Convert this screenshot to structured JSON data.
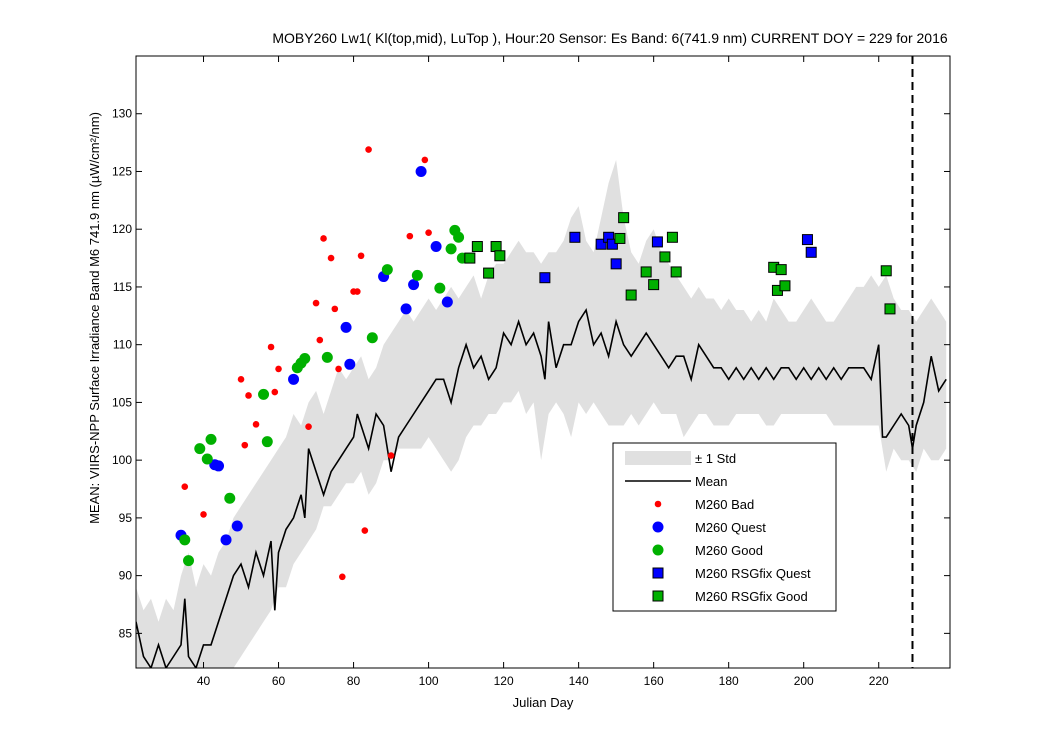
{
  "chart_data": {
    "type": "line",
    "title": "MOBY260   Lw1( Kl(top,mid), LuTop ),   Hour:20 Sensor: Es Band: 6(741.9 nm)   CURRENT DOY = 229 for 2016",
    "xlabel": "Julian Day",
    "ylabel": "MEAN: VIIRS-NPP Surface Irradiance Band M6 741.9 nm (µW/cm²/nm)",
    "xlim": [
      22,
      239
    ],
    "ylim": [
      82,
      135
    ],
    "xticks": [
      "40",
      "60",
      "80",
      "100",
      "120",
      "140",
      "160",
      "180",
      "200",
      "220"
    ],
    "yticks": [
      "85",
      "90",
      "95",
      "100",
      "105",
      "110",
      "115",
      "120",
      "125",
      "130"
    ],
    "grid": false,
    "legend_position": "lower-right",
    "current_doy": 229,
    "legend": [
      "± 1 Std",
      "Mean",
      "M260 Bad",
      "M260 Quest",
      "M260 Good",
      "M260 RSGfix Quest",
      "M260 RSGfix Good"
    ],
    "colors": {
      "std_band": "#e0e0e0",
      "mean": "#000000",
      "bad": "#ff0000",
      "quest": "#0000ff",
      "good": "#00b000",
      "marker_edge": "#000000"
    },
    "std_band": {
      "x": [
        22,
        24,
        26,
        28,
        30,
        32,
        34,
        36,
        38,
        40,
        42,
        44,
        46,
        48,
        50,
        52,
        54,
        56,
        58,
        60,
        62,
        64,
        66,
        68,
        70,
        72,
        74,
        76,
        78,
        80,
        82,
        84,
        86,
        88,
        90,
        92,
        94,
        96,
        98,
        100,
        102,
        104,
        106,
        108,
        110,
        112,
        114,
        116,
        118,
        120,
        122,
        124,
        126,
        128,
        130,
        132,
        134,
        136,
        138,
        140,
        142,
        144,
        146,
        148,
        150,
        152,
        154,
        156,
        158,
        160,
        162,
        164,
        166,
        168,
        170,
        172,
        174,
        176,
        178,
        180,
        182,
        184,
        186,
        188,
        190,
        192,
        194,
        196,
        198,
        200,
        202,
        204,
        206,
        208,
        210,
        212,
        214,
        216,
        218,
        220,
        222,
        224,
        226,
        228,
        230,
        232,
        234,
        236,
        238
      ],
      "upper": [
        89,
        87,
        88,
        86,
        88,
        87,
        90,
        92,
        89,
        91,
        90,
        92,
        93,
        95,
        96,
        97,
        98,
        99,
        100,
        101,
        102,
        104,
        103,
        105,
        106,
        104,
        106,
        108,
        107,
        108,
        109,
        107,
        108,
        110,
        111,
        112,
        113,
        112,
        113,
        114,
        113,
        114,
        115,
        114,
        115,
        116,
        114,
        116,
        117,
        117,
        118,
        119,
        118,
        118,
        117,
        118,
        118,
        119,
        121,
        122,
        119,
        118,
        121,
        124,
        126,
        121,
        118,
        117,
        119,
        120,
        118,
        117,
        116,
        115,
        114,
        115,
        114,
        114,
        113,
        114,
        113,
        113,
        112,
        113,
        112,
        114,
        113,
        112,
        112,
        113,
        114,
        113,
        112,
        112,
        113,
        114,
        115,
        115,
        116,
        115,
        116,
        114,
        113,
        113,
        112,
        113,
        114,
        113,
        112
      ],
      "lower": [
        82,
        82,
        82,
        82,
        82,
        82,
        82,
        82,
        82,
        82,
        82,
        82,
        82,
        82,
        83,
        84,
        85,
        86,
        87,
        89,
        89,
        91,
        92,
        93,
        94,
        96,
        96,
        97,
        98,
        98,
        99,
        97,
        98,
        100,
        100,
        101,
        101,
        101,
        101,
        102,
        101,
        100,
        99,
        100,
        102,
        103,
        103,
        104,
        104,
        105,
        105,
        106,
        104,
        105,
        100,
        104,
        105,
        104,
        102,
        105,
        104,
        105,
        104,
        103,
        103,
        103,
        104,
        103,
        104,
        105,
        104,
        104,
        104,
        102,
        103,
        104,
        104,
        103,
        103,
        103,
        104,
        104,
        104,
        104,
        103,
        103,
        104,
        104,
        104,
        104,
        104,
        104,
        104,
        103,
        103,
        103,
        103,
        103,
        103,
        103,
        99,
        101,
        100,
        100,
        99,
        101,
        100,
        100,
        101
      ]
    },
    "mean": {
      "x": [
        22,
        24,
        26,
        28,
        30,
        32,
        34,
        35,
        36,
        38,
        40,
        42,
        44,
        46,
        48,
        50,
        52,
        54,
        56,
        58,
        59,
        60,
        62,
        64,
        66,
        67,
        68,
        70,
        72,
        74,
        76,
        78,
        80,
        81,
        82,
        84,
        86,
        88,
        90,
        92,
        94,
        96,
        98,
        100,
        102,
        104,
        106,
        108,
        110,
        112,
        114,
        116,
        118,
        120,
        122,
        124,
        126,
        128,
        130,
        131,
        132,
        134,
        136,
        138,
        140,
        142,
        144,
        146,
        148,
        150,
        152,
        154,
        156,
        158,
        160,
        162,
        164,
        166,
        168,
        170,
        172,
        174,
        176,
        178,
        180,
        182,
        184,
        186,
        188,
        190,
        192,
        194,
        196,
        198,
        200,
        202,
        204,
        206,
        208,
        210,
        212,
        214,
        216,
        218,
        220,
        221,
        222,
        224,
        226,
        228,
        229,
        230,
        232,
        234,
        236,
        238
      ],
      "y": [
        86,
        83,
        82,
        84,
        82,
        83,
        84,
        88,
        83,
        82,
        84,
        84,
        86,
        88,
        90,
        91,
        89,
        92,
        90,
        93,
        87,
        92,
        94,
        95,
        97,
        95,
        101,
        99,
        97,
        99,
        100,
        101,
        102,
        104,
        103,
        101,
        104,
        103,
        99,
        102,
        103,
        104,
        105,
        106,
        107,
        107,
        105,
        108,
        110,
        108,
        109,
        107,
        108,
        111,
        110,
        112,
        110,
        111,
        109,
        107,
        112,
        108,
        110,
        110,
        112,
        113,
        110,
        111,
        109,
        112,
        110,
        109,
        110,
        111,
        110,
        109,
        108,
        109,
        109,
        107,
        110,
        109,
        108,
        108,
        107,
        108,
        107,
        108,
        107,
        108,
        107,
        108,
        108,
        107,
        108,
        107,
        108,
        107,
        108,
        107,
        108,
        108,
        108,
        107,
        110,
        102,
        102,
        103,
        104,
        103,
        101,
        103,
        105,
        109,
        106,
        107
      ]
    },
    "bad": [
      [
        35,
        97.7
      ],
      [
        40,
        95.3
      ],
      [
        50,
        107
      ],
      [
        51,
        101.3
      ],
      [
        52,
        105.6
      ],
      [
        54,
        103.1
      ],
      [
        56,
        105.7
      ],
      [
        58,
        109.8
      ],
      [
        59,
        105.9
      ],
      [
        60,
        107.9
      ],
      [
        68,
        102.9
      ],
      [
        70,
        113.6
      ],
      [
        71,
        110.4
      ],
      [
        72,
        119.2
      ],
      [
        74,
        117.5
      ],
      [
        75,
        113.1
      ],
      [
        76,
        107.9
      ],
      [
        77,
        89.9
      ],
      [
        80,
        114.6
      ],
      [
        81,
        114.6
      ],
      [
        82,
        117.7
      ],
      [
        83,
        93.9
      ],
      [
        84,
        126.9
      ],
      [
        88,
        116
      ],
      [
        90,
        100.4
      ],
      [
        95,
        119.4
      ],
      [
        99,
        126
      ],
      [
        100,
        119.7
      ]
    ],
    "quest": [
      [
        34,
        93.5
      ],
      [
        43,
        99.6
      ],
      [
        44,
        99.5
      ],
      [
        46,
        93.1
      ],
      [
        49,
        94.3
      ],
      [
        64,
        107
      ],
      [
        78,
        111.5
      ],
      [
        79,
        108.3
      ],
      [
        88,
        115.9
      ],
      [
        94,
        113.1
      ],
      [
        96,
        115.2
      ],
      [
        98,
        125
      ],
      [
        102,
        118.5
      ],
      [
        105,
        113.7
      ]
    ],
    "good": [
      [
        35,
        93.1
      ],
      [
        36,
        91.3
      ],
      [
        39,
        101
      ],
      [
        41,
        100.1
      ],
      [
        42,
        101.8
      ],
      [
        47,
        96.7
      ],
      [
        56,
        105.7
      ],
      [
        57,
        101.6
      ],
      [
        65,
        108
      ],
      [
        66,
        108.4
      ],
      [
        67,
        108.8
      ],
      [
        73,
        108.9
      ],
      [
        85,
        110.6
      ],
      [
        89,
        116.5
      ],
      [
        97,
        116
      ],
      [
        103,
        114.9
      ],
      [
        106,
        118.3
      ],
      [
        107,
        119.9
      ],
      [
        108,
        119.3
      ],
      [
        109,
        117.5
      ]
    ],
    "rsg_quest": [
      [
        131,
        115.8
      ],
      [
        139,
        119.3
      ],
      [
        146,
        118.7
      ],
      [
        148,
        119.3
      ],
      [
        149,
        118.7
      ],
      [
        150,
        117
      ],
      [
        161,
        118.9
      ],
      [
        201,
        119.1
      ],
      [
        202,
        118
      ]
    ],
    "rsg_good": [
      [
        111,
        117.5
      ],
      [
        113,
        118.5
      ],
      [
        116,
        116.2
      ],
      [
        118,
        118.5
      ],
      [
        119,
        117.7
      ],
      [
        151,
        119.2
      ],
      [
        152,
        121
      ],
      [
        154,
        114.3
      ],
      [
        158,
        116.3
      ],
      [
        160,
        115.2
      ],
      [
        163,
        117.6
      ],
      [
        165,
        119.3
      ],
      [
        166,
        116.3
      ],
      [
        192,
        116.7
      ],
      [
        193,
        114.7
      ],
      [
        194,
        116.5
      ],
      [
        195,
        115.1
      ],
      [
        222,
        116.4
      ],
      [
        223,
        113.1
      ]
    ]
  }
}
